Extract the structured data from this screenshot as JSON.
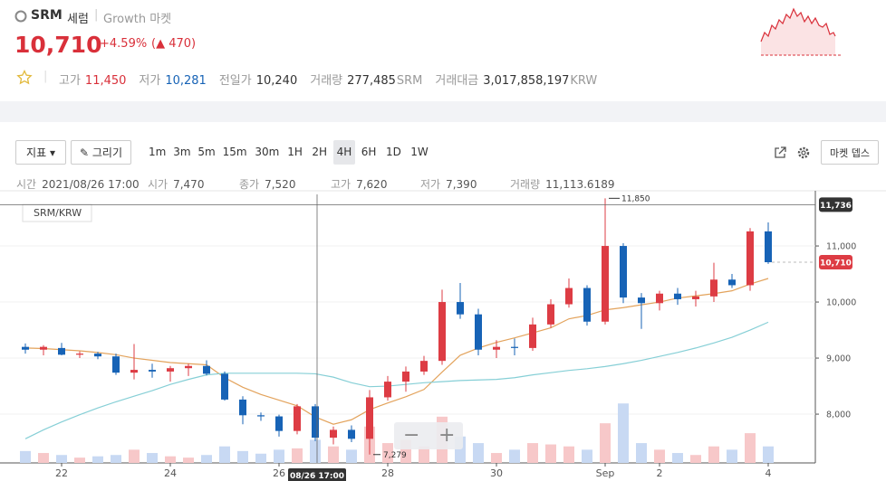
{
  "header": {
    "symbol": "SRM",
    "name": "세럼",
    "market": "Growth 마켓",
    "price": "10,710",
    "change_pct": "+4.59%",
    "change": "470",
    "stats": [
      {
        "label": "고가",
        "value": "11,450",
        "tone": "up"
      },
      {
        "label": "저가",
        "value": "10,281",
        "tone": "down"
      },
      {
        "label": "전일가",
        "value": "10,240"
      },
      {
        "label": "거래량",
        "value": "277,485",
        "unit": "SRM"
      },
      {
        "label": "거래대금",
        "value": "3,017,858,197",
        "unit": "KRW"
      }
    ]
  },
  "toolbar": {
    "indicator": "지표",
    "draw": "그리기",
    "intervals": [
      "1m",
      "3m",
      "5m",
      "15m",
      "30m",
      "1H",
      "2H",
      "4H",
      "6H",
      "1D",
      "1W"
    ],
    "active": "4H",
    "depth": "마켓 뎁스"
  },
  "info": [
    {
      "label": "시간",
      "value": "2021/08/26 17:00"
    },
    {
      "label": "시가",
      "value": "7,470"
    },
    {
      "label": "종가",
      "value": "7,520"
    },
    {
      "label": "고가",
      "value": "7,620"
    },
    {
      "label": "저가",
      "value": "7,390"
    },
    {
      "label": "거래량",
      "value": "11,113.6189"
    }
  ],
  "chart_data": {
    "type": "candlestick",
    "pair": "SRM/KRW",
    "categories": [
      null,
      null,
      "22",
      null,
      null,
      null,
      null,
      null,
      "24",
      null,
      null,
      null,
      null,
      null,
      "26",
      null,
      null,
      null,
      null,
      null,
      "28",
      null,
      null,
      null,
      null,
      null,
      "30",
      null,
      null,
      null,
      null,
      null,
      "Sep",
      null,
      null,
      "2",
      null,
      null,
      null,
      null,
      null,
      "4"
    ],
    "open": [
      9200,
      9150,
      9180,
      9060,
      9080,
      9030,
      8740,
      8790,
      8760,
      8820,
      8860,
      8720,
      8260,
      7980,
      7960,
      7700,
      8140,
      7580,
      7720,
      7560,
      8300,
      8580,
      8760,
      8950,
      10000,
      9780,
      9150,
      9200,
      9180,
      9600,
      9960,
      10250,
      9650,
      11000,
      10080,
      9980,
      10150,
      10050,
      10100,
      10400,
      10300,
      11260
    ],
    "high": [
      9260,
      9230,
      9270,
      9120,
      9110,
      9080,
      9250,
      8900,
      8860,
      8900,
      8960,
      8760,
      8320,
      8030,
      7990,
      8180,
      8180,
      7780,
      7800,
      8430,
      8680,
      8850,
      9040,
      10220,
      10340,
      9880,
      9320,
      9350,
      9720,
      10050,
      10420,
      10300,
      11850,
      11050,
      10160,
      10200,
      10250,
      10200,
      10700,
      10500,
      11320,
      11420
    ],
    "low": [
      9080,
      9050,
      9050,
      9000,
      8980,
      8700,
      8620,
      8650,
      8580,
      8680,
      8690,
      8240,
      7820,
      7880,
      7600,
      7640,
      7520,
      7460,
      7500,
      7279,
      8240,
      8400,
      8700,
      8880,
      9700,
      9050,
      9000,
      9050,
      9130,
      9540,
      9900,
      9580,
      9600,
      9980,
      9520,
      9850,
      9950,
      9920,
      10000,
      10250,
      10200,
      10680
    ],
    "close": [
      9150,
      9200,
      9060,
      9080,
      9030,
      8740,
      8790,
      8760,
      8820,
      8860,
      8720,
      8260,
      7980,
      7960,
      7700,
      8140,
      7580,
      7720,
      7560,
      8300,
      8580,
      8760,
      8950,
      10000,
      9780,
      9150,
      9200,
      9180,
      9600,
      9960,
      10250,
      9650,
      11000,
      10080,
      9980,
      10150,
      10050,
      10100,
      10400,
      10300,
      11260,
      10710
    ],
    "volume": [
      18,
      15,
      12,
      8,
      10,
      12,
      20,
      15,
      10,
      8,
      12,
      25,
      18,
      14,
      20,
      22,
      35,
      25,
      20,
      55,
      30,
      35,
      25,
      70,
      40,
      30,
      15,
      20,
      30,
      28,
      25,
      20,
      60,
      90,
      30,
      20,
      15,
      12,
      25,
      20,
      45,
      25
    ],
    "volume_lim": [
      0,
      130
    ],
    "ma": [
      {
        "color": "#e3a35c",
        "values": [
          9180,
          9170,
          9150,
          9130,
          9100,
          9060,
          9000,
          8960,
          8920,
          8900,
          8880,
          8650,
          8480,
          8350,
          8250,
          8150,
          7950,
          7820,
          7900,
          8080,
          8200,
          8310,
          8440,
          8750,
          9050,
          9180,
          9280,
          9360,
          9450,
          9540,
          9700,
          9760,
          9860,
          9900,
          9950,
          10000,
          10070,
          10110,
          10150,
          10200,
          10320,
          10420
        ]
      },
      {
        "color": "#86cfd6",
        "values": [
          7560,
          7720,
          7860,
          7990,
          8110,
          8220,
          8320,
          8420,
          8530,
          8620,
          8700,
          8730,
          8730,
          8730,
          8730,
          8730,
          8720,
          8660,
          8560,
          8490,
          8500,
          8530,
          8560,
          8580,
          8600,
          8610,
          8620,
          8650,
          8700,
          8740,
          8780,
          8810,
          8850,
          8900,
          8960,
          9030,
          9100,
          9180,
          9270,
          9370,
          9500,
          9640
        ]
      }
    ],
    "colors": {
      "up": "#dd3c44",
      "down": "#1763b6",
      "up_volume": "#f7c8c9",
      "down_volume": "#c8d9f3"
    },
    "ylim": [
      7130,
      11920
    ],
    "yticks": [
      {
        "value": 8000,
        "label": "8,000"
      },
      {
        "value": 9000,
        "label": "9,000"
      },
      {
        "value": 10000,
        "label": "10,000"
      },
      {
        "value": 11000,
        "label": "11,000"
      }
    ],
    "grid": true,
    "last": {
      "value": 10710,
      "label": "10,710"
    },
    "crosshair": {
      "value": 11736,
      "label": "11,736",
      "time": "08/26 17:00"
    },
    "max_marker": {
      "value": 11850,
      "label": "11,850"
    },
    "min_marker": {
      "value": 7279,
      "label": "7,279"
    }
  }
}
